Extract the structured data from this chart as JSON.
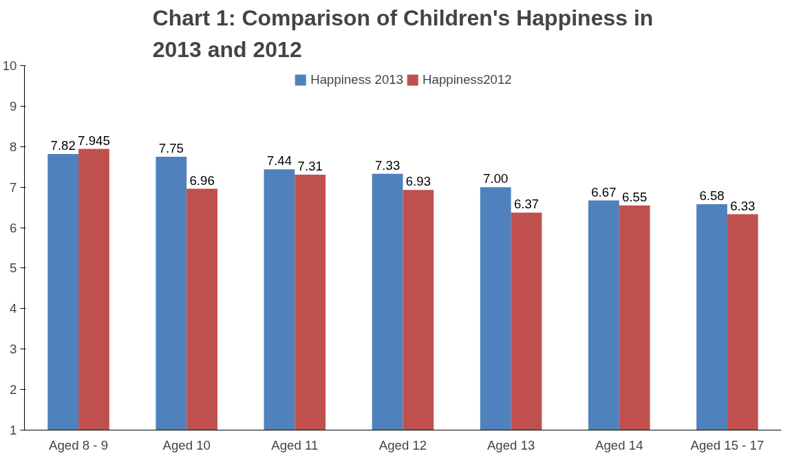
{
  "chart_data": {
    "type": "bar",
    "title": "Chart 1: Comparison of Children's Happiness in\n2013 and 2012",
    "categories": [
      "Aged 8 - 9",
      "Aged 10",
      "Aged 11",
      "Aged 12",
      "Aged 13",
      "Aged 14",
      "Aged 15 - 17"
    ],
    "series": [
      {
        "name": "Happiness 2013",
        "color": "#4f81bd",
        "values": [
          7.82,
          7.75,
          7.44,
          7.33,
          7.0,
          6.67,
          6.58
        ],
        "value_labels": [
          "7.82",
          "7.75",
          "7.44",
          "7.33",
          "7.00",
          "6.67",
          "6.58"
        ]
      },
      {
        "name": "Happiness2012",
        "color": "#c0504d",
        "values": [
          7.945,
          6.96,
          7.31,
          6.93,
          6.37,
          6.55,
          6.33
        ],
        "value_labels": [
          "7.945",
          "6.96",
          "7.31",
          "6.93",
          "6.37",
          "6.55",
          "6.33"
        ]
      }
    ],
    "ylim": [
      1,
      10
    ],
    "yticks": [
      1,
      2,
      3,
      4,
      5,
      6,
      7,
      8,
      9,
      10
    ],
    "grid": false,
    "legend": "top"
  }
}
